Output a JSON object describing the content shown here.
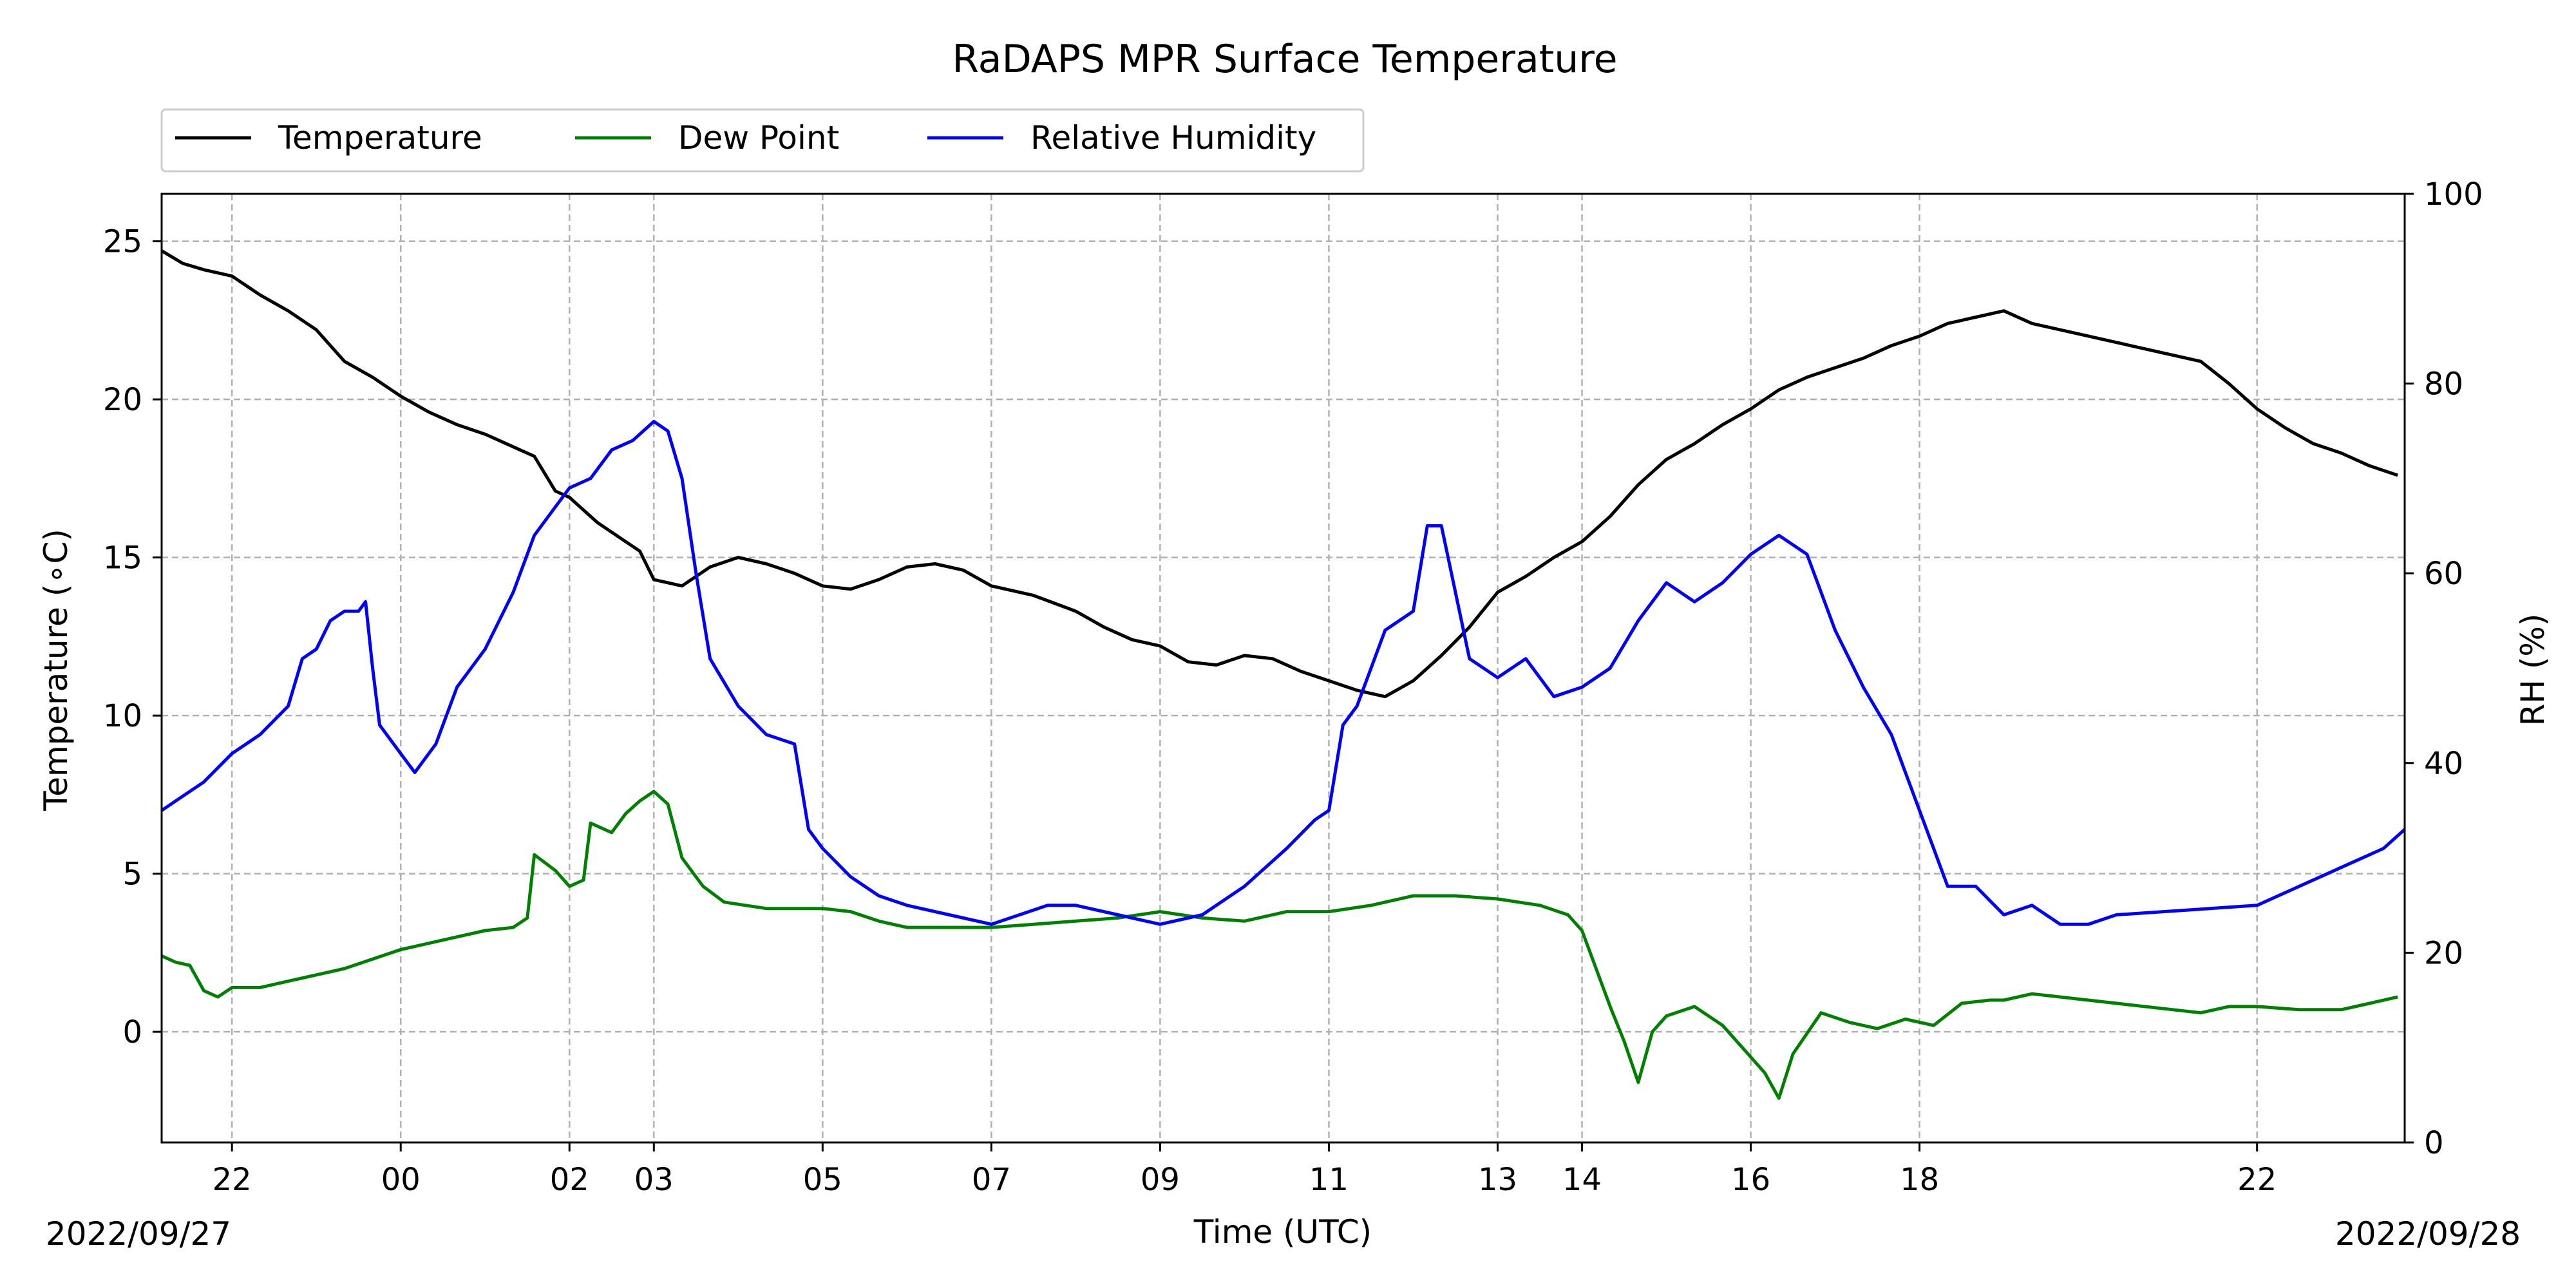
{
  "chart_data": {
    "type": "line",
    "title": "RaDAPS MPR Surface Temperature",
    "xlabel": "Time (UTC)",
    "ylabel": "Temperature ($^\\circ$C)",
    "ylabel_display": "Temperature (∘C)",
    "y2label": "RH (%)",
    "xlim": [
      "2022-09-27T21:10",
      "2022-09-28T23:45"
    ],
    "ylim": [
      -3.5,
      26.5
    ],
    "y2lim": [
      0,
      100
    ],
    "grid": true,
    "legend_position": "top-left, above plot",
    "x_tick_labels": [
      {
        "t": "2022-09-27T22:00",
        "label": "22"
      },
      {
        "t": "2022-09-28T00:00",
        "label": "00"
      },
      {
        "t": "2022-09-28T02:00",
        "label": "02"
      },
      {
        "t": "2022-09-28T03:00",
        "label": "03"
      },
      {
        "t": "2022-09-28T05:00",
        "label": "05"
      },
      {
        "t": "2022-09-28T07:00",
        "label": "07"
      },
      {
        "t": "2022-09-28T09:00",
        "label": "09"
      },
      {
        "t": "2022-09-28T11:00",
        "label": "11"
      },
      {
        "t": "2022-09-28T13:00",
        "label": "13"
      },
      {
        "t": "2022-09-28T14:00",
        "label": "14"
      },
      {
        "t": "2022-09-28T16:00",
        "label": "16"
      },
      {
        "t": "2022-09-28T18:00",
        "label": "18"
      },
      {
        "t": "2022-09-28T22:00",
        "label": "22"
      }
    ],
    "y_ticks": [
      0,
      5,
      10,
      15,
      20,
      25
    ],
    "y2_ticks": [
      0,
      20,
      40,
      60,
      80,
      100
    ],
    "date_labels": {
      "left": "2022/09/27",
      "right": "2022/09/28"
    },
    "series": [
      {
        "name": "Temperature",
        "axis": "left",
        "color": "#000000",
        "points": [
          [
            "2022-09-27T21:10",
            24.7
          ],
          [
            "2022-09-27T21:25",
            24.3
          ],
          [
            "2022-09-27T21:40",
            24.1
          ],
          [
            "2022-09-27T22:00",
            23.9
          ],
          [
            "2022-09-27T22:20",
            23.3
          ],
          [
            "2022-09-27T22:40",
            22.8
          ],
          [
            "2022-09-27T23:00",
            22.2
          ],
          [
            "2022-09-27T23:20",
            21.2
          ],
          [
            "2022-09-27T23:40",
            20.7
          ],
          [
            "2022-09-28T00:00",
            20.1
          ],
          [
            "2022-09-28T00:20",
            19.6
          ],
          [
            "2022-09-28T00:40",
            19.2
          ],
          [
            "2022-09-28T01:00",
            18.9
          ],
          [
            "2022-09-28T01:20",
            18.5
          ],
          [
            "2022-09-28T01:35",
            18.2
          ],
          [
            "2022-09-28T01:50",
            17.1
          ],
          [
            "2022-09-28T02:00",
            16.9
          ],
          [
            "2022-09-28T02:20",
            16.1
          ],
          [
            "2022-09-28T02:40",
            15.5
          ],
          [
            "2022-09-28T02:50",
            15.2
          ],
          [
            "2022-09-28T03:00",
            14.3
          ],
          [
            "2022-09-28T03:20",
            14.1
          ],
          [
            "2022-09-28T03:40",
            14.7
          ],
          [
            "2022-09-28T04:00",
            15.0
          ],
          [
            "2022-09-28T04:20",
            14.8
          ],
          [
            "2022-09-28T04:40",
            14.5
          ],
          [
            "2022-09-28T05:00",
            14.1
          ],
          [
            "2022-09-28T05:20",
            14.0
          ],
          [
            "2022-09-28T05:40",
            14.3
          ],
          [
            "2022-09-28T06:00",
            14.7
          ],
          [
            "2022-09-28T06:20",
            14.8
          ],
          [
            "2022-09-28T06:40",
            14.6
          ],
          [
            "2022-09-28T07:00",
            14.1
          ],
          [
            "2022-09-28T07:30",
            13.8
          ],
          [
            "2022-09-28T08:00",
            13.3
          ],
          [
            "2022-09-28T08:20",
            12.8
          ],
          [
            "2022-09-28T08:40",
            12.4
          ],
          [
            "2022-09-28T09:00",
            12.2
          ],
          [
            "2022-09-28T09:20",
            11.7
          ],
          [
            "2022-09-28T09:40",
            11.6
          ],
          [
            "2022-09-28T10:00",
            11.9
          ],
          [
            "2022-09-28T10:20",
            11.8
          ],
          [
            "2022-09-28T10:40",
            11.4
          ],
          [
            "2022-09-28T11:00",
            11.1
          ],
          [
            "2022-09-28T11:20",
            10.8
          ],
          [
            "2022-09-28T11:40",
            10.6
          ],
          [
            "2022-09-28T12:00",
            11.1
          ],
          [
            "2022-09-28T12:20",
            11.9
          ],
          [
            "2022-09-28T12:40",
            12.8
          ],
          [
            "2022-09-28T13:00",
            13.9
          ],
          [
            "2022-09-28T13:20",
            14.4
          ],
          [
            "2022-09-28T13:40",
            15.0
          ],
          [
            "2022-09-28T14:00",
            15.5
          ],
          [
            "2022-09-28T14:20",
            16.3
          ],
          [
            "2022-09-28T14:40",
            17.3
          ],
          [
            "2022-09-28T15:00",
            18.1
          ],
          [
            "2022-09-28T15:20",
            18.6
          ],
          [
            "2022-09-28T15:40",
            19.2
          ],
          [
            "2022-09-28T16:00",
            19.7
          ],
          [
            "2022-09-28T16:20",
            20.3
          ],
          [
            "2022-09-28T16:40",
            20.7
          ],
          [
            "2022-09-28T17:00",
            21.0
          ],
          [
            "2022-09-28T17:20",
            21.3
          ],
          [
            "2022-09-28T17:40",
            21.7
          ],
          [
            "2022-09-28T18:00",
            22.0
          ],
          [
            "2022-09-28T18:20",
            22.4
          ],
          [
            "2022-09-28T18:40",
            22.6
          ],
          [
            "2022-09-28T19:00",
            22.8
          ],
          [
            "2022-09-28T19:20",
            22.4
          ],
          [
            "2022-09-28T21:20",
            21.2
          ],
          [
            "2022-09-28T21:40",
            20.5
          ],
          [
            "2022-09-28T22:00",
            19.7
          ],
          [
            "2022-09-28T22:20",
            19.1
          ],
          [
            "2022-09-28T22:40",
            18.6
          ],
          [
            "2022-09-28T23:00",
            18.3
          ],
          [
            "2022-09-28T23:20",
            17.9
          ],
          [
            "2022-09-28T23:40",
            17.6
          ]
        ]
      },
      {
        "name": "Dew Point",
        "axis": "left",
        "color": "#008000",
        "points": [
          [
            "2022-09-27T21:10",
            2.4
          ],
          [
            "2022-09-27T21:20",
            2.2
          ],
          [
            "2022-09-27T21:30",
            2.1
          ],
          [
            "2022-09-27T21:40",
            1.3
          ],
          [
            "2022-09-27T21:50",
            1.1
          ],
          [
            "2022-09-27T22:00",
            1.4
          ],
          [
            "2022-09-27T22:20",
            1.4
          ],
          [
            "2022-09-27T22:40",
            1.6
          ],
          [
            "2022-09-27T23:00",
            1.8
          ],
          [
            "2022-09-27T23:20",
            2.0
          ],
          [
            "2022-09-27T23:40",
            2.3
          ],
          [
            "2022-09-28T00:00",
            2.6
          ],
          [
            "2022-09-28T00:20",
            2.8
          ],
          [
            "2022-09-28T00:40",
            3.0
          ],
          [
            "2022-09-28T01:00",
            3.2
          ],
          [
            "2022-09-28T01:20",
            3.3
          ],
          [
            "2022-09-28T01:30",
            3.6
          ],
          [
            "2022-09-28T01:35",
            5.6
          ],
          [
            "2022-09-28T01:50",
            5.1
          ],
          [
            "2022-09-28T02:00",
            4.6
          ],
          [
            "2022-09-28T02:10",
            4.8
          ],
          [
            "2022-09-28T02:15",
            6.6
          ],
          [
            "2022-09-28T02:30",
            6.3
          ],
          [
            "2022-09-28T02:40",
            6.9
          ],
          [
            "2022-09-28T02:50",
            7.3
          ],
          [
            "2022-09-28T03:00",
            7.6
          ],
          [
            "2022-09-28T03:10",
            7.2
          ],
          [
            "2022-09-28T03:20",
            5.5
          ],
          [
            "2022-09-28T03:35",
            4.6
          ],
          [
            "2022-09-28T03:50",
            4.1
          ],
          [
            "2022-09-28T04:20",
            3.9
          ],
          [
            "2022-09-28T05:00",
            3.9
          ],
          [
            "2022-09-28T05:20",
            3.8
          ],
          [
            "2022-09-28T05:40",
            3.5
          ],
          [
            "2022-09-28T06:00",
            3.3
          ],
          [
            "2022-09-28T06:40",
            3.3
          ],
          [
            "2022-09-28T07:00",
            3.3
          ],
          [
            "2022-09-28T07:30",
            3.4
          ],
          [
            "2022-09-28T08:00",
            3.5
          ],
          [
            "2022-09-28T08:30",
            3.6
          ],
          [
            "2022-09-28T09:00",
            3.8
          ],
          [
            "2022-09-28T09:30",
            3.6
          ],
          [
            "2022-09-28T10:00",
            3.5
          ],
          [
            "2022-09-28T10:30",
            3.8
          ],
          [
            "2022-09-28T11:00",
            3.8
          ],
          [
            "2022-09-28T11:30",
            4.0
          ],
          [
            "2022-09-28T12:00",
            4.3
          ],
          [
            "2022-09-28T12:30",
            4.3
          ],
          [
            "2022-09-28T13:00",
            4.2
          ],
          [
            "2022-09-28T13:30",
            4.0
          ],
          [
            "2022-09-28T13:50",
            3.7
          ],
          [
            "2022-09-28T14:00",
            3.2
          ],
          [
            "2022-09-28T14:10",
            2.0
          ],
          [
            "2022-09-28T14:20",
            0.8
          ],
          [
            "2022-09-28T14:30",
            -0.3
          ],
          [
            "2022-09-28T14:40",
            -1.6
          ],
          [
            "2022-09-28T14:50",
            0.0
          ],
          [
            "2022-09-28T15:00",
            0.5
          ],
          [
            "2022-09-28T15:20",
            0.8
          ],
          [
            "2022-09-28T15:40",
            0.2
          ],
          [
            "2022-09-28T16:00",
            -0.8
          ],
          [
            "2022-09-28T16:10",
            -1.3
          ],
          [
            "2022-09-28T16:20",
            -2.1
          ],
          [
            "2022-09-28T16:30",
            -0.7
          ],
          [
            "2022-09-28T16:50",
            0.6
          ],
          [
            "2022-09-28T17:10",
            0.3
          ],
          [
            "2022-09-28T17:30",
            0.1
          ],
          [
            "2022-09-28T17:50",
            0.4
          ],
          [
            "2022-09-28T18:10",
            0.2
          ],
          [
            "2022-09-28T18:30",
            0.9
          ],
          [
            "2022-09-28T18:50",
            1.0
          ],
          [
            "2022-09-28T19:00",
            1.0
          ],
          [
            "2022-09-28T19:20",
            1.2
          ],
          [
            "2022-09-28T21:20",
            0.6
          ],
          [
            "2022-09-28T21:40",
            0.8
          ],
          [
            "2022-09-28T22:00",
            0.8
          ],
          [
            "2022-09-28T22:30",
            0.7
          ],
          [
            "2022-09-28T23:00",
            0.7
          ],
          [
            "2022-09-28T23:20",
            0.9
          ],
          [
            "2022-09-28T23:40",
            1.1
          ]
        ]
      },
      {
        "name": "Relative Humidity",
        "axis": "right",
        "color": "#0000ff",
        "points": [
          [
            "2022-09-27T21:10",
            35
          ],
          [
            "2022-09-27T21:20",
            36
          ],
          [
            "2022-09-27T21:40",
            38
          ],
          [
            "2022-09-27T22:00",
            41
          ],
          [
            "2022-09-27T22:20",
            43
          ],
          [
            "2022-09-27T22:40",
            46
          ],
          [
            "2022-09-27T22:50",
            51
          ],
          [
            "2022-09-27T23:00",
            52
          ],
          [
            "2022-09-27T23:10",
            55
          ],
          [
            "2022-09-27T23:20",
            56
          ],
          [
            "2022-09-27T23:30",
            56
          ],
          [
            "2022-09-27T23:35",
            57
          ],
          [
            "2022-09-27T23:40",
            50
          ],
          [
            "2022-09-27T23:45",
            44
          ],
          [
            "2022-09-28T00:00",
            41
          ],
          [
            "2022-09-28T00:10",
            39
          ],
          [
            "2022-09-28T00:25",
            42
          ],
          [
            "2022-09-28T00:40",
            48
          ],
          [
            "2022-09-28T01:00",
            52
          ],
          [
            "2022-09-28T01:20",
            58
          ],
          [
            "2022-09-28T01:35",
            64
          ],
          [
            "2022-09-28T01:45",
            66
          ],
          [
            "2022-09-28T02:00",
            69
          ],
          [
            "2022-09-28T02:15",
            70
          ],
          [
            "2022-09-28T02:30",
            73
          ],
          [
            "2022-09-28T02:45",
            74
          ],
          [
            "2022-09-28T03:00",
            76
          ],
          [
            "2022-09-28T03:10",
            75
          ],
          [
            "2022-09-28T03:20",
            70
          ],
          [
            "2022-09-28T03:30",
            60
          ],
          [
            "2022-09-28T03:40",
            51
          ],
          [
            "2022-09-28T04:00",
            46
          ],
          [
            "2022-09-28T04:20",
            43
          ],
          [
            "2022-09-28T04:40",
            42
          ],
          [
            "2022-09-28T04:50",
            33
          ],
          [
            "2022-09-28T05:00",
            31
          ],
          [
            "2022-09-28T05:20",
            28
          ],
          [
            "2022-09-28T05:40",
            26
          ],
          [
            "2022-09-28T06:00",
            25
          ],
          [
            "2022-09-28T06:30",
            24
          ],
          [
            "2022-09-28T07:00",
            23
          ],
          [
            "2022-09-28T07:20",
            24
          ],
          [
            "2022-09-28T07:40",
            25
          ],
          [
            "2022-09-28T08:00",
            25
          ],
          [
            "2022-09-28T08:30",
            24
          ],
          [
            "2022-09-28T09:00",
            23
          ],
          [
            "2022-09-28T09:30",
            24
          ],
          [
            "2022-09-28T10:00",
            27
          ],
          [
            "2022-09-28T10:30",
            31
          ],
          [
            "2022-09-28T10:50",
            34
          ],
          [
            "2022-09-28T11:00",
            35
          ],
          [
            "2022-09-28T11:10",
            44
          ],
          [
            "2022-09-28T11:20",
            46
          ],
          [
            "2022-09-28T11:40",
            54
          ],
          [
            "2022-09-28T12:00",
            56
          ],
          [
            "2022-09-28T12:10",
            65
          ],
          [
            "2022-09-28T12:20",
            65
          ],
          [
            "2022-09-28T12:30",
            58
          ],
          [
            "2022-09-28T12:40",
            51
          ],
          [
            "2022-09-28T13:00",
            49
          ],
          [
            "2022-09-28T13:20",
            51
          ],
          [
            "2022-09-28T13:40",
            47
          ],
          [
            "2022-09-28T14:00",
            48
          ],
          [
            "2022-09-28T14:20",
            50
          ],
          [
            "2022-09-28T14:40",
            55
          ],
          [
            "2022-09-28T15:00",
            59
          ],
          [
            "2022-09-28T15:20",
            57
          ],
          [
            "2022-09-28T15:40",
            59
          ],
          [
            "2022-09-28T16:00",
            62
          ],
          [
            "2022-09-28T16:20",
            64
          ],
          [
            "2022-09-28T16:40",
            62
          ],
          [
            "2022-09-28T17:00",
            54
          ],
          [
            "2022-09-28T17:20",
            48
          ],
          [
            "2022-09-28T17:40",
            43
          ],
          [
            "2022-09-28T18:00",
            35
          ],
          [
            "2022-09-28T18:10",
            31
          ],
          [
            "2022-09-28T18:20",
            27
          ],
          [
            "2022-09-28T18:40",
            27
          ],
          [
            "2022-09-28T19:00",
            24
          ],
          [
            "2022-09-28T19:20",
            25
          ],
          [
            "2022-09-28T19:40",
            23
          ],
          [
            "2022-09-28T20:00",
            23
          ],
          [
            "2022-09-28T20:20",
            24
          ],
          [
            "2022-09-28T22:00",
            25
          ],
          [
            "2022-09-28T22:30",
            27
          ],
          [
            "2022-09-28T23:00",
            29
          ],
          [
            "2022-09-28T23:30",
            31
          ],
          [
            "2022-09-28T23:45",
            33
          ]
        ]
      }
    ]
  }
}
